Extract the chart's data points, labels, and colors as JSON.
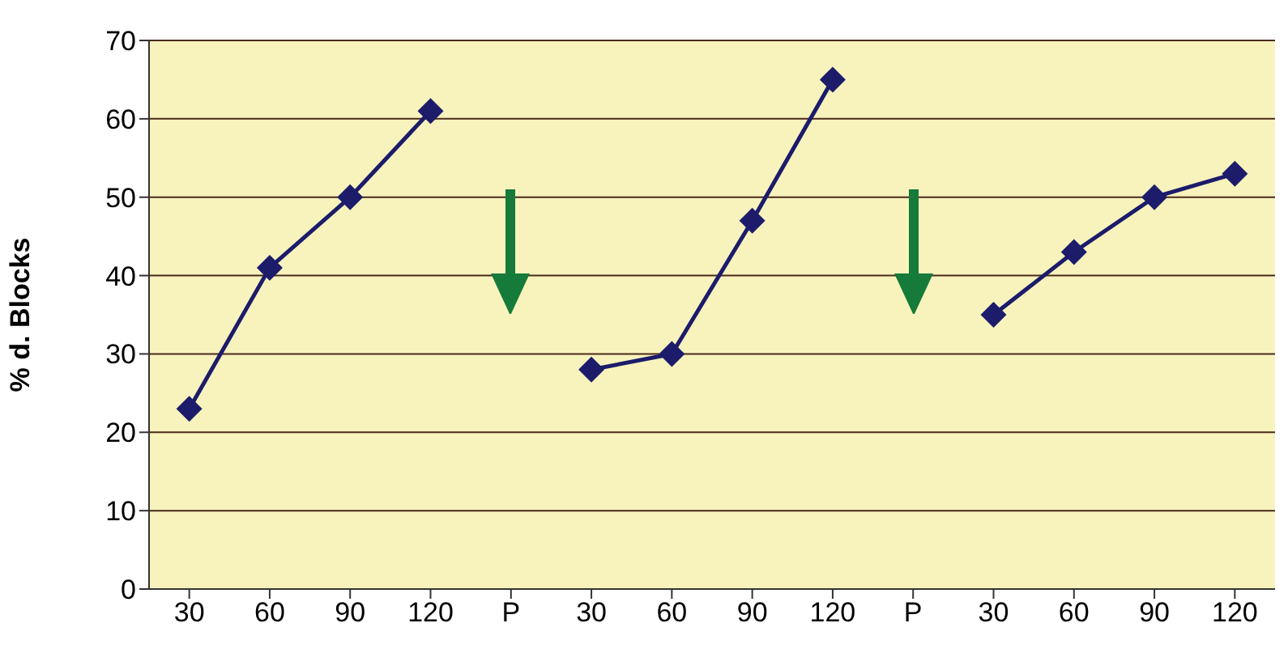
{
  "chart_data": {
    "type": "line",
    "ylabel": "% d. Blocks",
    "categories": [
      "30",
      "60",
      "90",
      "120",
      "P",
      "30",
      "60",
      "90",
      "120",
      "P",
      "30",
      "60",
      "90",
      "120"
    ],
    "series": [
      {
        "color": "#1c1c6b",
        "values": [
          23,
          41,
          50,
          61,
          null,
          28,
          30,
          47,
          65,
          null,
          35,
          43,
          50,
          53
        ]
      }
    ],
    "ylim": [
      0,
      70
    ],
    "yticks": [
      0,
      10,
      20,
      30,
      40,
      50,
      60,
      70
    ],
    "grid": "y",
    "marker": "diamond",
    "line_style": "solid"
  }
}
